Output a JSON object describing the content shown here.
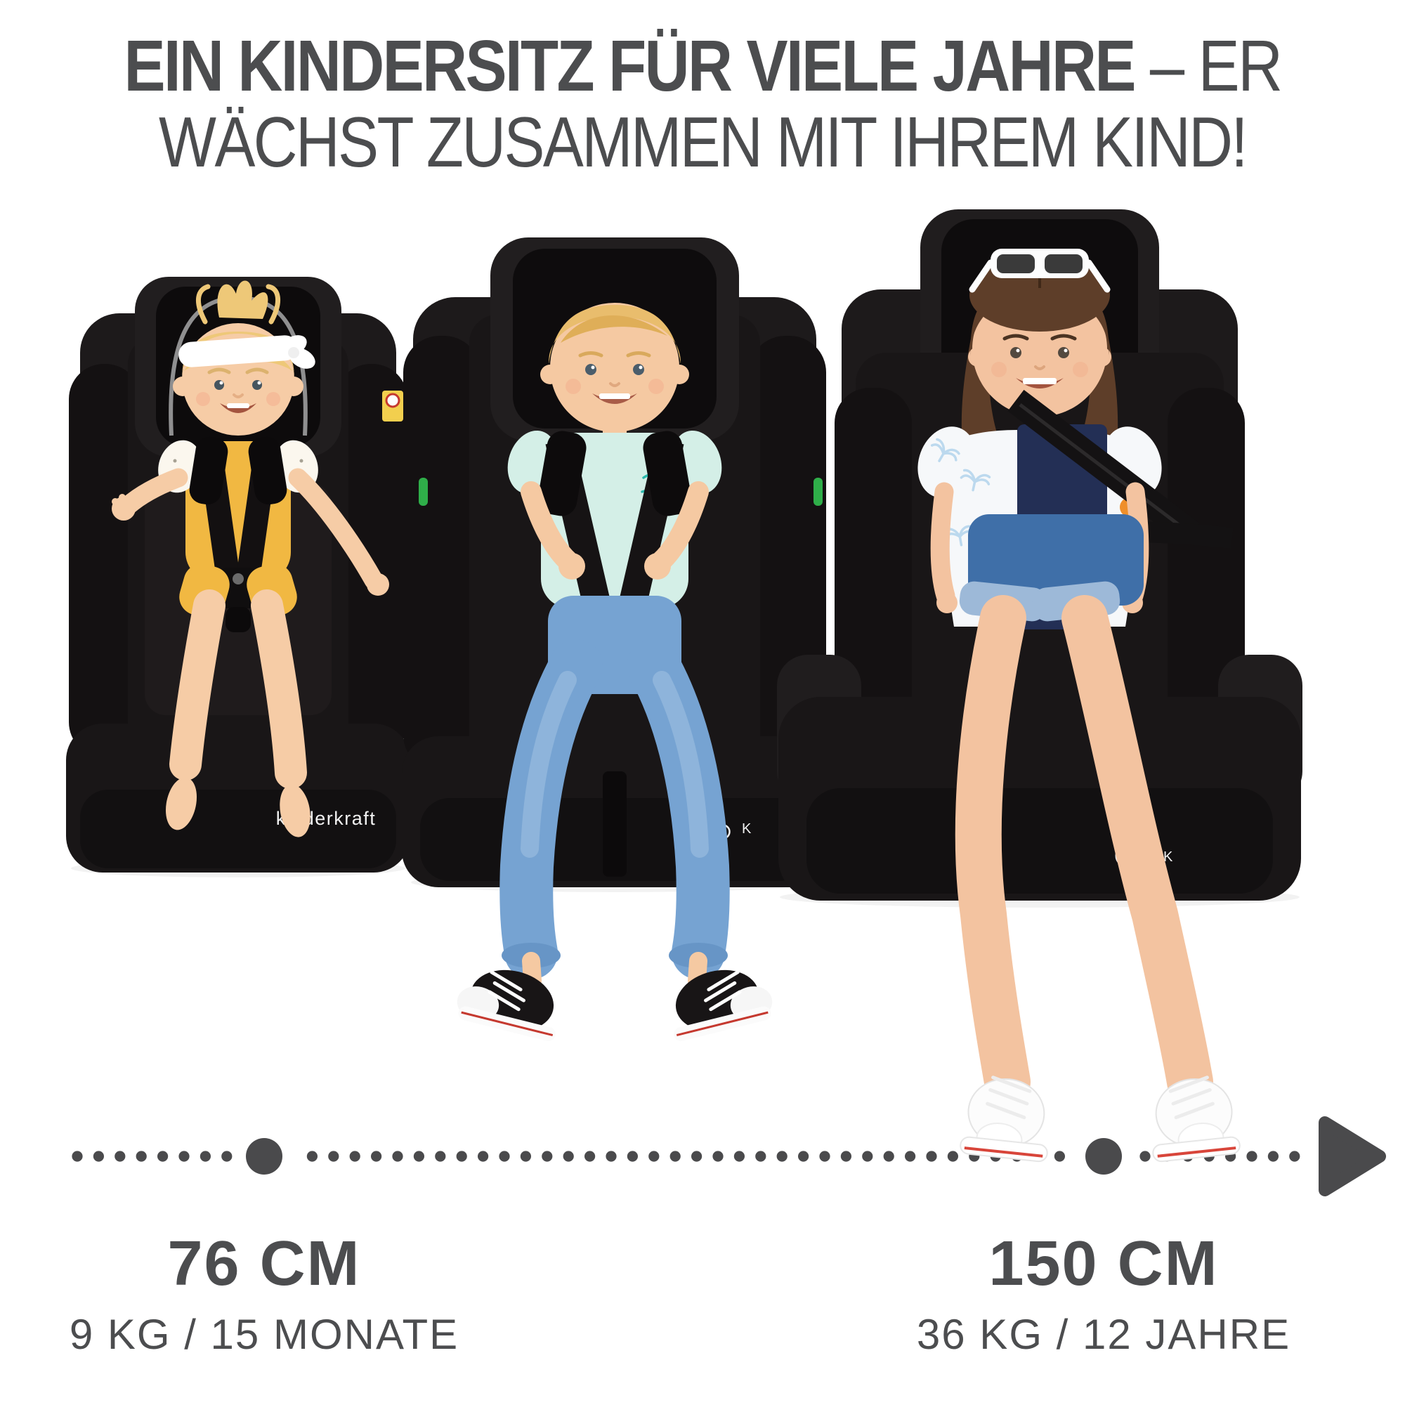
{
  "meta": {
    "background": "#ffffff",
    "text_color": "#4c4d4f",
    "dot_color": "#4a4a4c",
    "accent_green": "#2fae49",
    "seat_black": "#171415"
  },
  "headline": {
    "line1_bold": "EIN KINDERSITZ FÜR VIELE JAHRE",
    "line1_light": " – ER",
    "line2": "WÄCHST ZUSAMMEN MIT IHREM KIND!"
  },
  "brand": {
    "logo_text": "kinderkraft",
    "monogram_upper": "K",
    "monogram_lower": "k",
    "initial": "K"
  },
  "timeline": {
    "markers": [
      {
        "value": "76 CM",
        "detail": "9 KG / 15 MONATE"
      },
      {
        "value": "150 CM",
        "detail": "36 KG / 12 JAHRE"
      }
    ]
  }
}
